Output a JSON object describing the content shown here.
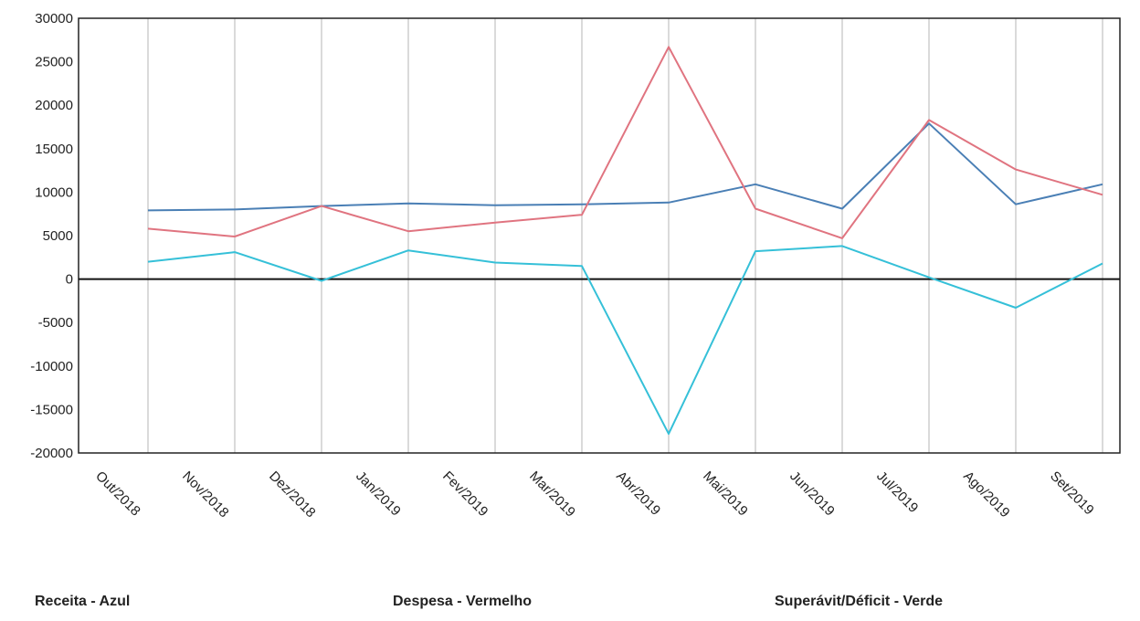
{
  "chart_data": {
    "type": "line",
    "categories": [
      "Out/2018",
      "Nov/2018",
      "Dez/2018",
      "Jan/2019",
      "Fev/2019",
      "Mar/2019",
      "Abr/2019",
      "Mai/2019",
      "Jun/2019",
      "Jul/2019",
      "Ago/2019",
      "Set/2019"
    ],
    "series": [
      {
        "name": "Receita",
        "color": "#4a7fb5",
        "values": [
          7900,
          8000,
          8400,
          8700,
          8500,
          8600,
          8800,
          10900,
          8100,
          17900,
          8600,
          10900
        ]
      },
      {
        "name": "Despesa",
        "color": "#e07480",
        "values": [
          5800,
          4900,
          8400,
          5500,
          6500,
          7400,
          26700,
          8100,
          4700,
          18300,
          12600,
          9700
        ]
      },
      {
        "name": "Superávit/Déficit",
        "color": "#35c0d8",
        "values": [
          2000,
          3100,
          -200,
          3300,
          1900,
          1500,
          -17800,
          3200,
          3800,
          200,
          -3300,
          1800
        ]
      }
    ],
    "ylim": [
      -20000,
      30000
    ],
    "yticks": [
      30000,
      25000,
      20000,
      15000,
      10000,
      5000,
      0,
      -5000,
      -10000,
      -15000,
      -20000
    ],
    "grid": "vertical"
  },
  "legend": {
    "receita": "Receita - Azul",
    "despesa": "Despesa - Vermelho",
    "superavit": "Superávit/Déficit - Verde"
  }
}
